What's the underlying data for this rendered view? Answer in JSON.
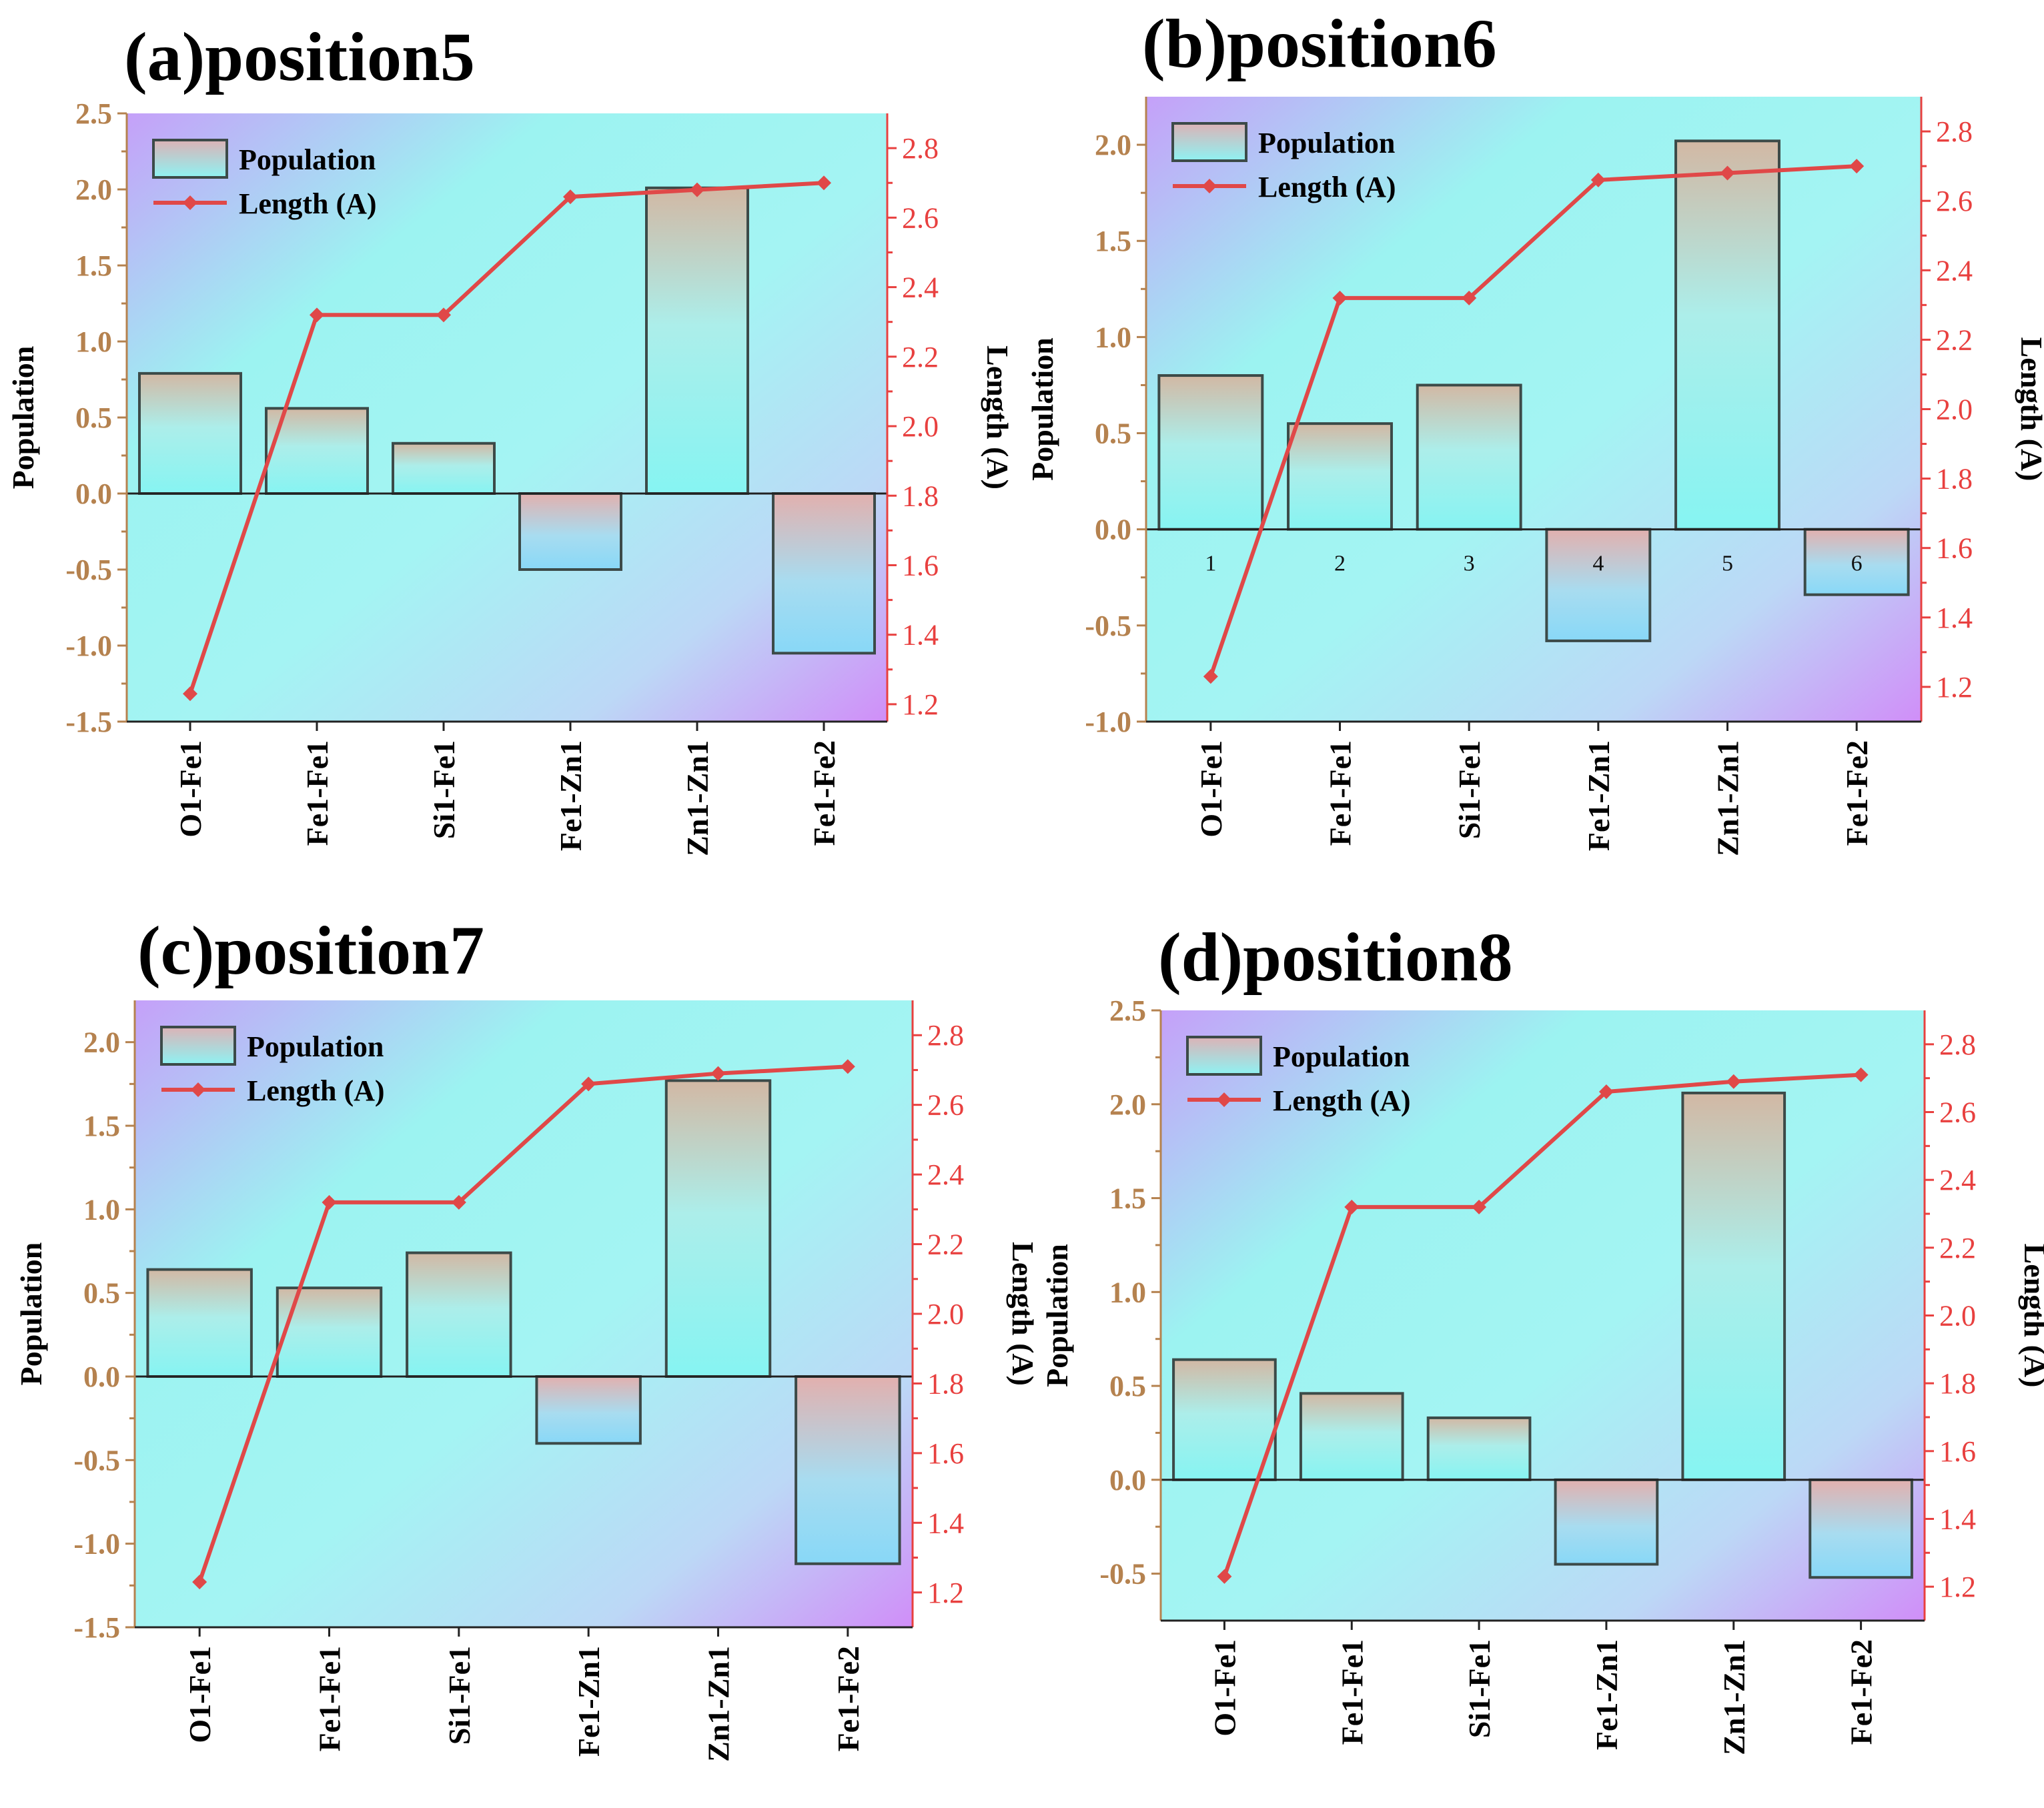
{
  "figure": {
    "colors": {
      "left_axis": "#b5824f",
      "right_axis": "#e8403f",
      "line": "#e04848",
      "bar_stroke": "#3c4a48",
      "bg_purple": "#c79dfa",
      "bg_cyan": "#9ff5f2"
    }
  },
  "chart_data": [
    {
      "panel_label": "(a)position5",
      "type": "bar",
      "categories": [
        "O1-Fe1",
        "Fe1-Fe1",
        "Si1-Fe1",
        "Fe1-Zn1",
        "Zn1-Zn1",
        "Fe1-Fe2"
      ],
      "series": [
        {
          "name": "Population",
          "type": "bar",
          "axis": "left",
          "values": [
            0.79,
            0.56,
            0.33,
            -0.5,
            2.01,
            -1.05
          ]
        },
        {
          "name": "Length (A)",
          "type": "line",
          "axis": "right",
          "values": [
            1.23,
            2.32,
            2.32,
            2.66,
            2.68,
            2.7
          ]
        }
      ],
      "ylabel": "Population",
      "ylabel_right": "Length (A)",
      "ylim": [
        -1.5,
        2.5
      ],
      "yticks": [
        "-1.5",
        "-1.0",
        "-0.5",
        "0.0",
        "0.5",
        "1.0",
        "1.5",
        "2.0",
        "2.5"
      ],
      "ylim_right": [
        1.15,
        2.9
      ],
      "yticks_right": [
        "1.2",
        "1.4",
        "1.6",
        "1.8",
        "2.0",
        "2.2",
        "2.4",
        "2.6",
        "2.8"
      ],
      "legend_position": "top-left",
      "bar_index_labels": []
    },
    {
      "panel_label": "(b)position6",
      "type": "bar",
      "categories": [
        "O1-Fe1",
        "Fe1-Fe1",
        "Si1-Fe1",
        "Fe1-Zn1",
        "Zn1-Zn1",
        "Fe1-Fe2"
      ],
      "series": [
        {
          "name": "Population",
          "type": "bar",
          "axis": "left",
          "values": [
            0.8,
            0.55,
            0.75,
            -0.58,
            2.02,
            -0.34
          ]
        },
        {
          "name": "Length (A)",
          "type": "line",
          "axis": "right",
          "values": [
            1.23,
            2.32,
            2.32,
            2.66,
            2.68,
            2.7
          ]
        }
      ],
      "ylabel": "Population",
      "ylabel_right": "Length (A)",
      "ylim": [
        -1.0,
        2.25
      ],
      "yticks": [
        "-1.0",
        "-0.5",
        "0.0",
        "0.5",
        "1.0",
        "1.5",
        "2.0"
      ],
      "ylim_right": [
        1.1,
        2.9
      ],
      "yticks_right": [
        "1.2",
        "1.4",
        "1.6",
        "1.8",
        "2.0",
        "2.2",
        "2.4",
        "2.6",
        "2.8"
      ],
      "legend_position": "top-left",
      "bar_index_labels": [
        "1",
        "2",
        "3",
        "4",
        "5",
        "6"
      ]
    },
    {
      "panel_label": "(c)position7",
      "type": "bar",
      "categories": [
        "O1-Fe1",
        "Fe1-Fe1",
        "Si1-Fe1",
        "Fe1-Zn1",
        "Zn1-Zn1",
        "Fe1-Fe2"
      ],
      "series": [
        {
          "name": "Population",
          "type": "bar",
          "axis": "left",
          "values": [
            0.64,
            0.53,
            0.74,
            -0.4,
            1.77,
            -1.12
          ]
        },
        {
          "name": "Length (A)",
          "type": "line",
          "axis": "right",
          "values": [
            1.23,
            2.32,
            2.32,
            2.66,
            2.69,
            2.71
          ]
        }
      ],
      "ylabel": "Population",
      "ylabel_right": "Length (A)",
      "ylim": [
        -1.5,
        2.25
      ],
      "yticks": [
        "-1.5",
        "-1.0",
        "-0.5",
        "0.0",
        "0.5",
        "1.0",
        "1.5",
        "2.0"
      ],
      "ylim_right": [
        1.1,
        2.9
      ],
      "yticks_right": [
        "1.2",
        "1.4",
        "1.6",
        "1.8",
        "2.0",
        "2.2",
        "2.4",
        "2.6",
        "2.8"
      ],
      "legend_position": "top-left",
      "bar_index_labels": []
    },
    {
      "panel_label": "(d)position8",
      "type": "bar",
      "categories": [
        "O1-Fe1",
        "Fe1-Fe1",
        "Si1-Fe1",
        "Fe1-Zn1",
        "Zn1-Zn1",
        "Fe1-Fe2"
      ],
      "series": [
        {
          "name": "Population",
          "type": "bar",
          "axis": "left",
          "values": [
            0.64,
            0.46,
            0.33,
            -0.45,
            2.06,
            -0.52
          ]
        },
        {
          "name": "Length (A)",
          "type": "line",
          "axis": "right",
          "values": [
            1.23,
            2.32,
            2.32,
            2.66,
            2.69,
            2.71
          ]
        }
      ],
      "ylabel": "Population",
      "ylabel_right": "Length (A)",
      "ylim": [
        -0.75,
        2.5
      ],
      "yticks": [
        "-0.5",
        "0.0",
        "0.5",
        "1.0",
        "1.5",
        "2.0",
        "2.5"
      ],
      "ylim_right": [
        1.1,
        2.9
      ],
      "yticks_right": [
        "1.2",
        "1.4",
        "1.6",
        "1.8",
        "2.0",
        "2.2",
        "2.4",
        "2.6",
        "2.8"
      ],
      "legend_position": "top-left",
      "bar_index_labels": []
    }
  ]
}
